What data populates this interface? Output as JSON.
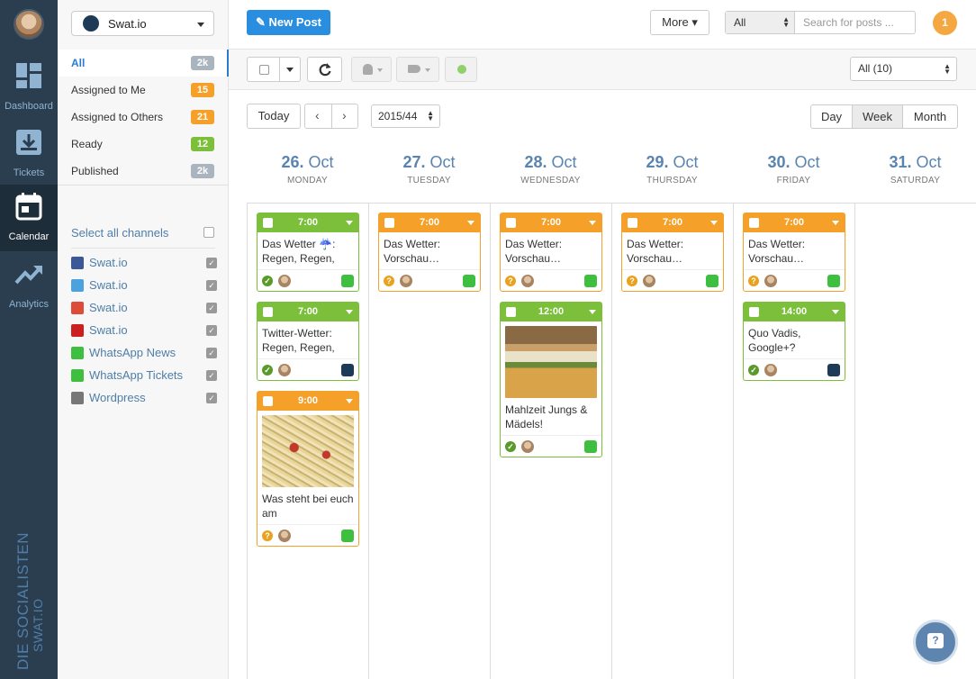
{
  "nav": {
    "items": [
      {
        "label": "Dashboard",
        "icon": "dashboard-icon"
      },
      {
        "label": "Tickets",
        "icon": "inbox-icon"
      },
      {
        "label": "Calendar",
        "icon": "calendar-icon"
      },
      {
        "label": "Analytics",
        "icon": "trending-icon"
      }
    ],
    "brand_line1": "DIE SOCIALISTEN",
    "brand_line2": "SWAT.IO"
  },
  "sidebar": {
    "account": "Swat.io",
    "filters": [
      {
        "label": "All",
        "count": "2k",
        "color": "#a9b4bf"
      },
      {
        "label": "Assigned to Me",
        "count": "15",
        "color": "#f5a028"
      },
      {
        "label": "Assigned to Others",
        "count": "21",
        "color": "#f5a028"
      },
      {
        "label": "Ready",
        "count": "12",
        "color": "#7bbf3a"
      },
      {
        "label": "Published",
        "count": "2k",
        "color": "#a9b4bf"
      }
    ],
    "select_all": "Select all channels",
    "channels": [
      {
        "name": "Swat.io",
        "icon": "facebook-icon",
        "color": "#3b5998"
      },
      {
        "name": "Swat.io",
        "icon": "twitter-icon",
        "color": "#4aa3df"
      },
      {
        "name": "Swat.io",
        "icon": "googleplus-icon",
        "color": "#dd4b39"
      },
      {
        "name": "Swat.io",
        "icon": "youtube-icon",
        "color": "#cc2020"
      },
      {
        "name": "WhatsApp News",
        "icon": "whatsapp-icon",
        "color": "#3fbf3f"
      },
      {
        "name": "WhatsApp Tickets",
        "icon": "whatsapp-icon",
        "color": "#3fbf3f"
      },
      {
        "name": "Wordpress",
        "icon": "wordpress-icon",
        "color": "#777777"
      }
    ]
  },
  "topbar": {
    "new_post": "✎ New Post",
    "more": "More ▾",
    "search_scope": "All",
    "search_placeholder": "Search for posts ...",
    "notifications": "1"
  },
  "toolbar": {
    "filter_select": "All (10)"
  },
  "calendar": {
    "today": "Today",
    "prev": "‹",
    "next": "›",
    "week": "2015/44",
    "views": [
      "Day",
      "Week",
      "Month"
    ],
    "days": [
      {
        "num": "26.",
        "month": "Oct",
        "weekday": "MONDAY"
      },
      {
        "num": "27.",
        "month": "Oct",
        "weekday": "TUESDAY"
      },
      {
        "num": "28.",
        "month": "Oct",
        "weekday": "WEDNESDAY"
      },
      {
        "num": "29.",
        "month": "Oct",
        "weekday": "THURSDAY"
      },
      {
        "num": "30.",
        "month": "Oct",
        "weekday": "FRIDAY"
      },
      {
        "num": "31.",
        "month": "Oct",
        "weekday": "SATURDAY"
      }
    ],
    "posts": [
      {
        "day": 0,
        "time": "7:00",
        "color": "green",
        "text": "Das Wetter ☔: Regen, Regen,",
        "status": "ok",
        "channel": "whatsapp-icon"
      },
      {
        "day": 0,
        "time": "7:00",
        "color": "green",
        "text": "Twitter-Wetter: Regen, Regen,",
        "status": "ok",
        "channel": "twitter-icon"
      },
      {
        "day": 0,
        "time": "9:00",
        "color": "orange",
        "text": "Was steht bei euch am",
        "status": "q",
        "channel": "whatsapp-icon",
        "image": "pasta-photo"
      },
      {
        "day": 1,
        "time": "7:00",
        "color": "orange",
        "text": "Das Wetter: Vorschau…",
        "status": "q",
        "channel": "whatsapp-icon"
      },
      {
        "day": 2,
        "time": "7:00",
        "color": "orange",
        "text": "Das Wetter: Vorschau…",
        "status": "q",
        "channel": "whatsapp-icon"
      },
      {
        "day": 2,
        "time": "12:00",
        "color": "green",
        "text": "Mahlzeit Jungs & Mädels!",
        "status": "ok",
        "channel": "whatsapp-icon",
        "image": "burger-photo"
      },
      {
        "day": 3,
        "time": "7:00",
        "color": "orange",
        "text": "Das Wetter: Vorschau…",
        "status": "q",
        "channel": "whatsapp-icon"
      },
      {
        "day": 4,
        "time": "7:00",
        "color": "orange",
        "text": "Das Wetter: Vorschau…",
        "status": "q",
        "channel": "whatsapp-icon"
      },
      {
        "day": 4,
        "time": "14:00",
        "color": "green",
        "text": "Quo Vadis, Google+?",
        "status": "ok",
        "channel": "googleplus-icon"
      }
    ]
  },
  "help": "?"
}
